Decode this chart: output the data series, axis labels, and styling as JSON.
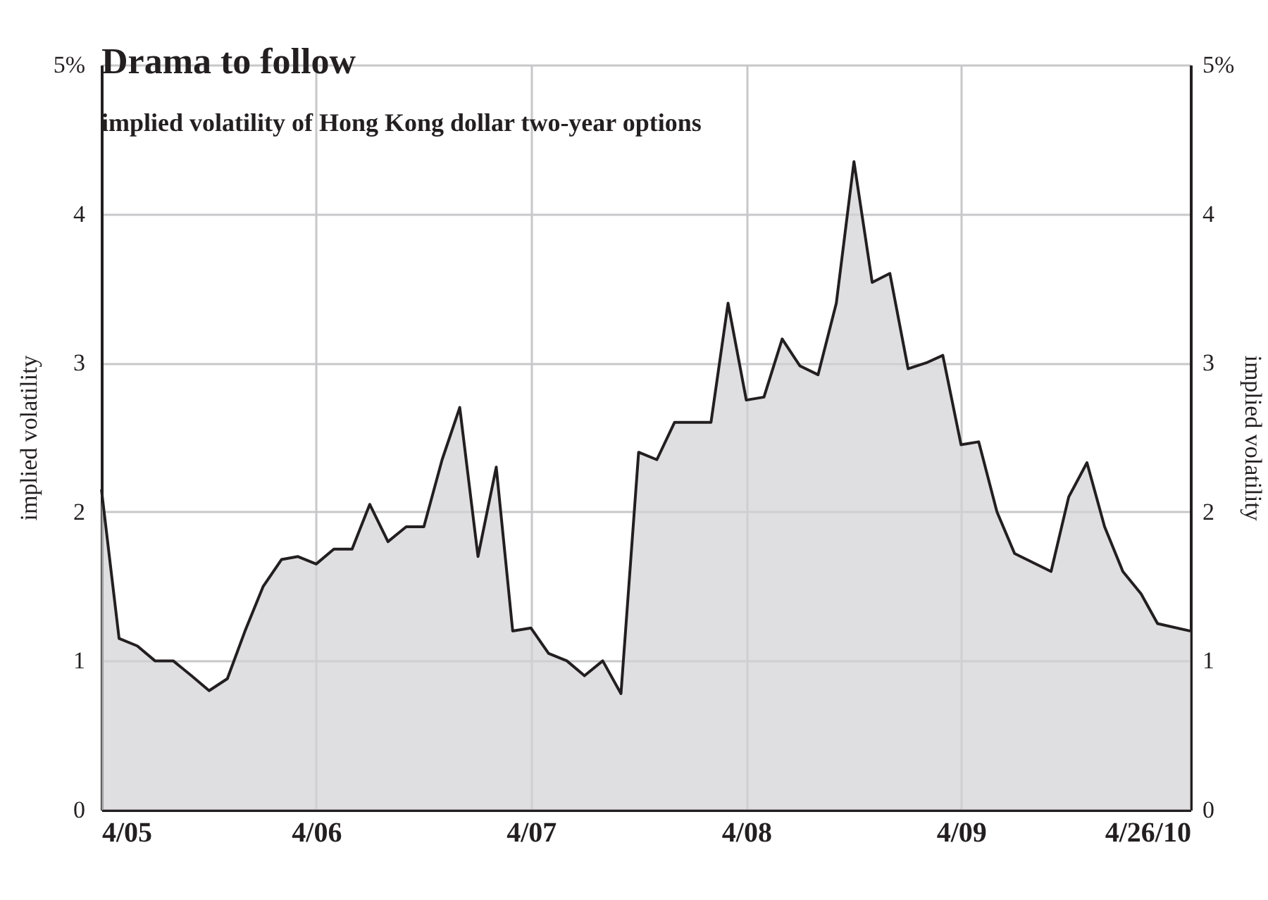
{
  "chart_data": {
    "type": "area",
    "title": "Drama to follow",
    "subtitle": "implied volatility of Hong Kong dollar two-year options",
    "ylabel": "implied volatility",
    "y2label": "implied volatility",
    "x": [
      "2005-04",
      "2005-05",
      "2005-06",
      "2005-07",
      "2005-08",
      "2005-09",
      "2005-10",
      "2005-11",
      "2005-12",
      "2006-01",
      "2006-02",
      "2006-03",
      "2006-04",
      "2006-05",
      "2006-06",
      "2006-07",
      "2006-08",
      "2006-09",
      "2006-10",
      "2006-11",
      "2006-12",
      "2007-01",
      "2007-02",
      "2007-03",
      "2007-04",
      "2007-05",
      "2007-06",
      "2007-07",
      "2007-08",
      "2007-09",
      "2007-10",
      "2007-11",
      "2007-12",
      "2008-01",
      "2008-02",
      "2008-03",
      "2008-04",
      "2008-05",
      "2008-06",
      "2008-07",
      "2008-08",
      "2008-09",
      "2008-10",
      "2008-11",
      "2008-12",
      "2009-01",
      "2009-02",
      "2009-03",
      "2009-04",
      "2009-05",
      "2009-06",
      "2009-07",
      "2009-08",
      "2009-09",
      "2009-10",
      "2009-11",
      "2009-12",
      "2010-01",
      "2010-02",
      "2010-03",
      "2010-04-26"
    ],
    "series": [
      {
        "color": "#d1d2d4",
        "values": [
          2.15,
          1.15,
          1.1,
          1.0,
          1.0,
          0.9,
          0.8,
          0.88,
          1.2,
          1.5,
          1.68,
          1.7,
          1.65,
          1.75,
          1.75,
          2.05,
          1.8,
          1.9,
          1.9,
          2.35,
          2.7,
          1.7,
          2.3,
          1.2,
          1.22,
          1.05,
          1.0,
          0.9,
          1.0,
          0.78,
          2.4,
          2.35,
          2.6,
          2.6,
          2.6,
          3.4,
          2.75,
          2.77,
          3.16,
          2.98,
          2.92,
          3.4,
          4.35,
          3.54,
          3.6,
          2.96,
          3.0,
          3.05,
          2.45,
          2.47,
          2.0,
          1.72,
          1.66,
          1.6,
          2.1,
          2.33,
          1.9,
          1.6,
          1.45,
          1.25,
          1.2
        ]
      }
    ],
    "xlim": [
      "2005-04",
      "2010-04-26"
    ],
    "xticks": [
      {
        "value": "2005-04",
        "label": "4/05"
      },
      {
        "value": "2006-04",
        "label": "4/06"
      },
      {
        "value": "2007-04",
        "label": "4/07"
      },
      {
        "value": "2008-04",
        "label": "4/08"
      },
      {
        "value": "2009-04",
        "label": "4/09"
      },
      {
        "value": "2010-04-26",
        "label": "4/26/10"
      }
    ],
    "ylim": [
      0,
      5
    ],
    "yticks": [
      0,
      1,
      2,
      3,
      4,
      {
        "value": 5,
        "label": "5%"
      }
    ],
    "y2lim": [
      0,
      5
    ],
    "y2ticks": [
      0,
      1,
      2,
      3,
      4,
      {
        "value": 5,
        "label": "5%"
      }
    ],
    "grid": true,
    "line_style": "solid"
  }
}
